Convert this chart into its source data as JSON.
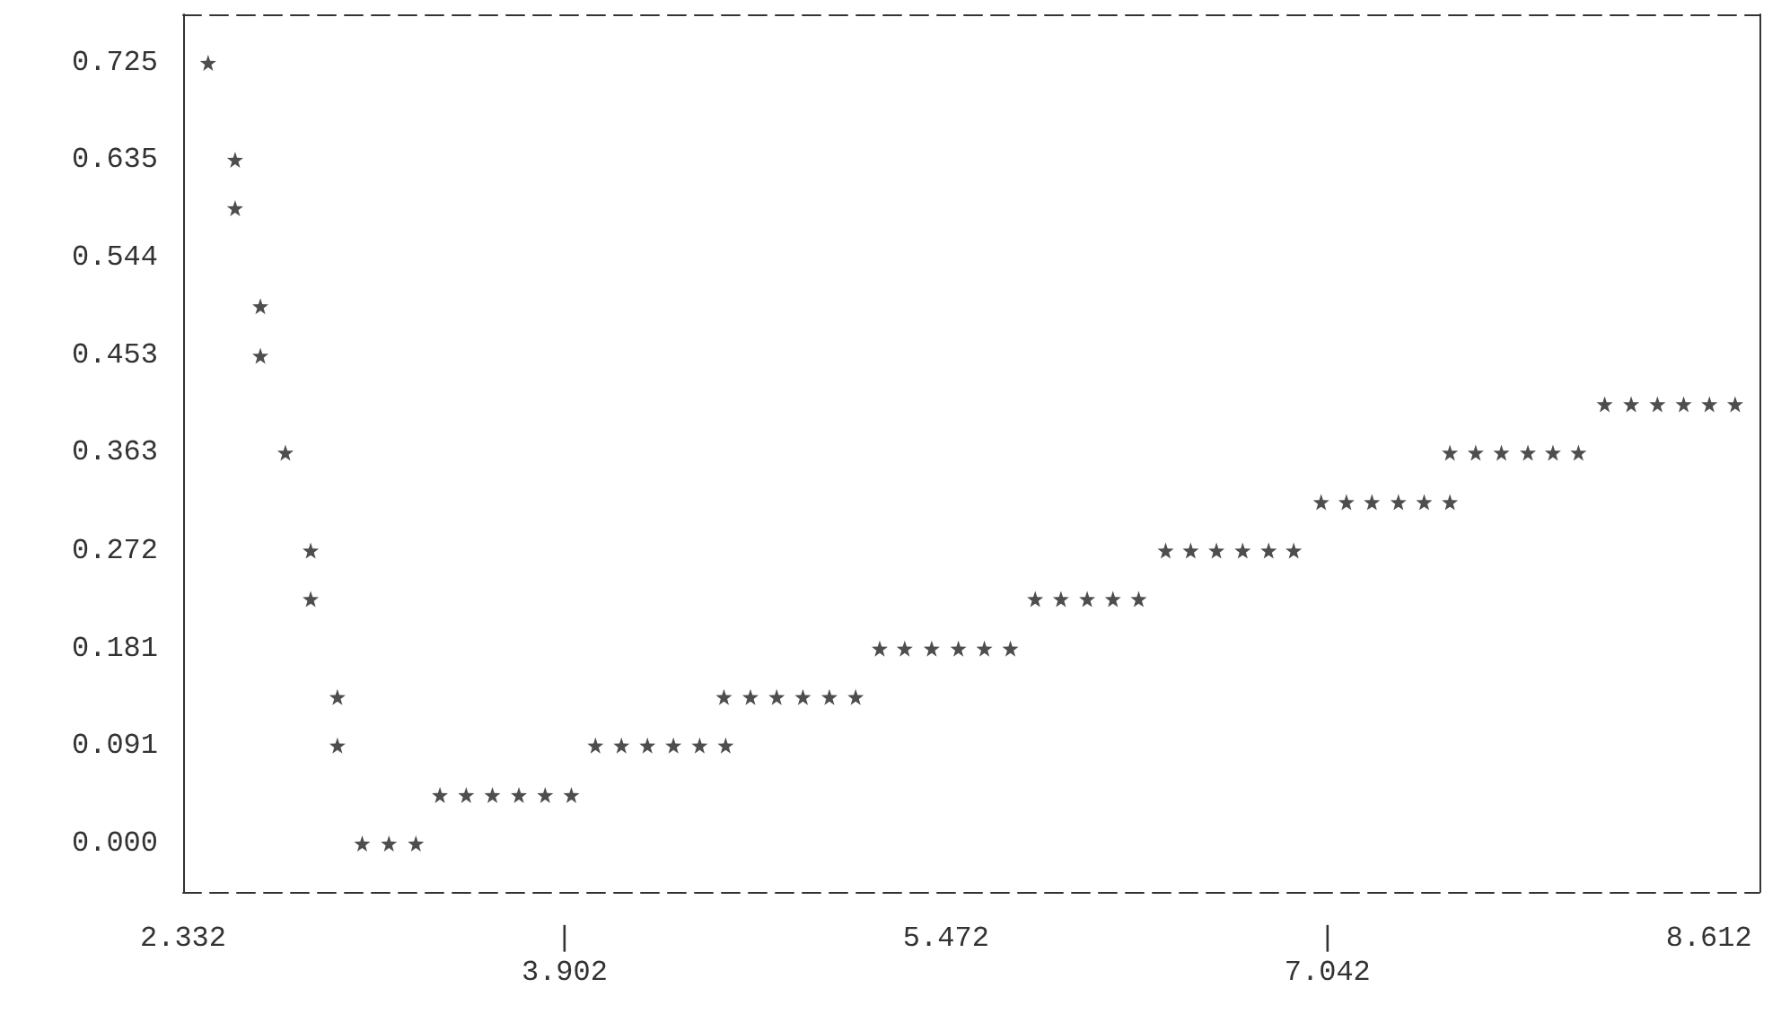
{
  "chart_data": {
    "type": "scatter",
    "marker": "star",
    "color": "#222222",
    "grid": false,
    "x": [
      2.435,
      2.546,
      2.546,
      2.65,
      2.65,
      2.753,
      2.857,
      2.857,
      2.967,
      2.967,
      3.069,
      3.179,
      3.29,
      3.389,
      3.497,
      3.605,
      3.714,
      3.822,
      3.93,
      4.029,
      4.136,
      4.243,
      4.35,
      4.458,
      4.565,
      4.558,
      4.667,
      4.775,
      4.883,
      4.992,
      5.1,
      5.199,
      5.302,
      5.413,
      5.523,
      5.63,
      5.737,
      5.839,
      5.945,
      6.053,
      6.159,
      6.265,
      6.376,
      6.479,
      6.585,
      6.693,
      6.8,
      6.903,
      7.016,
      7.12,
      7.225,
      7.334,
      7.44,
      7.546,
      7.546,
      7.652,
      7.758,
      7.867,
      7.97,
      8.075,
      8.183,
      8.292,
      8.4,
      8.508,
      8.614,
      8.72
    ],
    "values": [
      0.725,
      0.635,
      0.59,
      0.499,
      0.453,
      0.363,
      0.272,
      0.227,
      0.136,
      0.091,
      0,
      0,
      0,
      0.045,
      0.045,
      0.045,
      0.045,
      0.045,
      0.045,
      0.091,
      0.091,
      0.091,
      0.091,
      0.091,
      0.091,
      0.136,
      0.136,
      0.136,
      0.136,
      0.136,
      0.136,
      0.181,
      0.181,
      0.181,
      0.181,
      0.181,
      0.181,
      0.227,
      0.227,
      0.227,
      0.227,
      0.227,
      0.272,
      0.272,
      0.272,
      0.272,
      0.272,
      0.272,
      0.317,
      0.317,
      0.317,
      0.317,
      0.317,
      0.317,
      0.363,
      0.363,
      0.363,
      0.363,
      0.363,
      0.363,
      0.408,
      0.408,
      0.408,
      0.408,
      0.408,
      0.408
    ],
    "xlim": [
      2.332,
      8.82
    ],
    "xticks": [
      2.332,
      {
        "value": 3.902,
        "label": "|"
      },
      5.472,
      {
        "value": 7.042,
        "label": "|"
      },
      8.612
    ],
    "annotations": [
      "3.902",
      "7.042"
    ],
    "ylim": [
      -0.045,
      0.77
    ],
    "yticks": [
      {
        "value": 0,
        "label": "0.000"
      },
      0.091,
      0.181,
      0.272,
      0.363,
      0.453,
      0.544,
      0.635,
      0.725
    ]
  }
}
